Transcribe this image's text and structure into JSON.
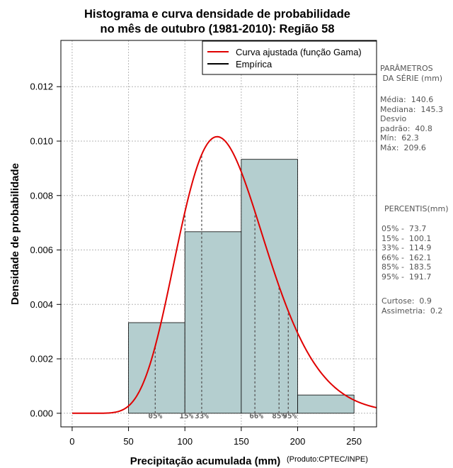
{
  "chart_data": {
    "type": "bar",
    "title_line1": "Histograma e curva densidade de probabilidade",
    "title_line2": "no mês de outubro (1981-2010): Região 58",
    "xlabel": "Precipitação acumulada (mm)",
    "ylabel": "Densidade de probabilidade",
    "credit": "(Produto:CPTEC/INPE)",
    "xlim": [
      -10,
      270
    ],
    "ylim": [
      -0.0005,
      0.0137
    ],
    "x_ticks": [
      0,
      50,
      100,
      150,
      200,
      250
    ],
    "y_ticks": [
      0.0,
      0.002,
      0.004,
      0.006,
      0.008,
      0.01,
      0.012
    ],
    "y_tick_labels": [
      "0.000",
      "0.002",
      "0.004",
      "0.006",
      "0.008",
      "0.010",
      "0.012"
    ],
    "grid": true,
    "bins": [
      {
        "x0": 50,
        "x1": 100,
        "density": 0.00333
      },
      {
        "x0": 100,
        "x1": 150,
        "density": 0.00667
      },
      {
        "x0": 150,
        "x1": 200,
        "density": 0.00933
      },
      {
        "x0": 200,
        "x1": 250,
        "density": 0.00067
      }
    ],
    "gamma_fit": {
      "shape": 11.9,
      "scale": 11.8,
      "label": "Curva ajustada (função Gama)",
      "color": "#e00000"
    },
    "empirical_label": "Empírica",
    "bar_color": "#b4cecf",
    "percentiles": [
      {
        "label": "05%",
        "value": 73.7
      },
      {
        "label": "15%",
        "value": 100.1
      },
      {
        "label": "33%",
        "value": 114.9
      },
      {
        "label": "66%",
        "value": 162.1
      },
      {
        "label": "85%",
        "value": 183.5
      },
      {
        "label": "95%",
        "value": 191.7
      }
    ]
  },
  "sidebar": {
    "params_title": "PARÂMETROS\n DA SÉRIE (mm)",
    "stats": "Média:  140.6\nMediana:  145.3\nDesvio\npadrão:  40.8\nMín:  62.3\nMáx:  209.6",
    "percentis_title": "PERCENTIS(mm)",
    "percentis": "05% -  73.7\n15% -  100.1\n33% -  114.9\n66% -  162.1\n85% -  183.5\n95% -  191.7",
    "extra": "Curtose:  0.9\nAssimetria:  0.2"
  }
}
